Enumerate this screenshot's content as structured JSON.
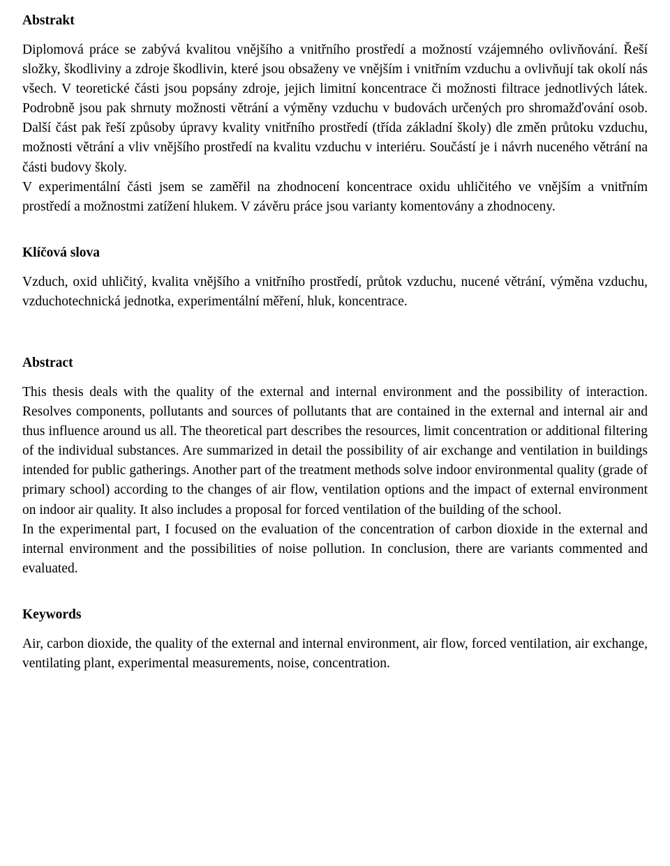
{
  "abstrakt": {
    "heading": "Abstrakt",
    "p1": "Diplomová práce se zabývá kvalitou vnějšího a vnitřního prostředí a možností vzájemného ovlivňování. Řeší složky, škodliviny a zdroje škodlivin, které jsou obsaženy ve vnějším i vnitřním vzduchu a ovlivňují tak okolí nás všech. V teoretické části jsou popsány zdroje, jejich limitní koncentrace či možnosti filtrace jednotlivých látek. Podrobně jsou pak shrnuty možnosti větrání a výměny vzduchu v budovách určených pro shromažďování osob. Další část pak řeší způsoby úpravy kvality vnitřního prostředí (třída základní školy) dle změn průtoku vzduchu, možnosti větrání a vliv vnějšího prostředí na kvalitu vzduchu v interiéru. Součástí je i návrh nuceného větrání na části budovy školy.",
    "p2": "V experimentální části jsem se zaměřil na zhodnocení koncentrace oxidu uhličitého ve vnějším a vnitřním prostředí a možnostmi zatížení hlukem. V závěru práce jsou varianty komentovány a zhodnoceny."
  },
  "klicova": {
    "heading": "Klíčová slova",
    "text": "Vzduch, oxid uhličitý, kvalita vnějšího a vnitřního prostředí, průtok vzduchu, nucené větrání, výměna vzduchu, vzduchotechnická jednotka, experimentální měření, hluk, koncentrace."
  },
  "abstract_en": {
    "heading": "Abstract",
    "p1": "This thesis deals with the quality of the external and internal environment and the possibility of interaction. Resolves components, pollutants and sources of pollutants that are contained in the external and internal air and thus influence around us all. The theoretical part describes the resources, limit concentration or additional filtering of the individual substances. Are summarized in detail the possibility of air exchange and ventilation in buildings intended for public gatherings. Another part of the treatment methods solve indoor environmental quality (grade of primary school) according to the changes of air flow, ventilation options and the impact of external environment on indoor air quality. It also includes a proposal for forced ventilation of the building of the school.",
    "p2": "In the experimental part, I focused on the evaluation of the concentration of carbon dioxide in the external and internal environment and the possibilities of noise pollution. In conclusion, there are variants commented and evaluated."
  },
  "keywords": {
    "heading": "Keywords",
    "text": "Air, carbon dioxide, the quality of the external and internal environment, air flow, forced ventilation, air exchange, ventilating plant, experimental measurements, noise, concentration."
  }
}
